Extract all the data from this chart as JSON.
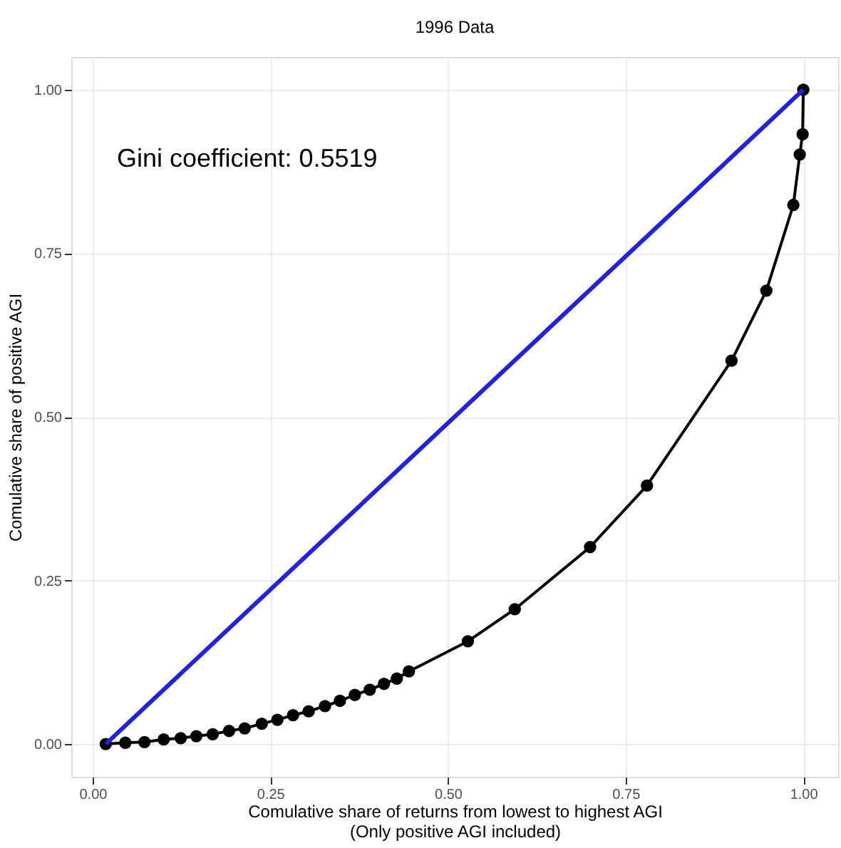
{
  "chart_data": {
    "type": "line",
    "title": "1996 Data",
    "xlabel": "Comulative share of returns from lowest to highest AGI\n(Only positive AGI included)",
    "ylabel": "Comulative share of positive AGI",
    "annotations": [
      "Gini coefficient:  0.5519"
    ],
    "xlim": [
      -0.03,
      1.049
    ],
    "xticks": [
      {
        "value": 0,
        "label": "0.00"
      },
      {
        "value": 0.25,
        "label": "0.25"
      },
      {
        "value": 0.5,
        "label": "0.50"
      },
      {
        "value": 0.75,
        "label": "0.75"
      },
      {
        "value": 1,
        "label": "1.00"
      }
    ],
    "ylim": [
      -0.05,
      1.05
    ],
    "yticks": [
      {
        "value": 0,
        "label": "0.00"
      },
      {
        "value": 0.25,
        "label": "0.25"
      },
      {
        "value": 0.5,
        "label": "0.50"
      },
      {
        "value": 0.75,
        "label": "0.75"
      },
      {
        "value": 1,
        "label": "1.00"
      }
    ],
    "grid": true,
    "series": [
      {
        "color": "#000000",
        "marker": "circle",
        "x": [
          0.0185,
          0.046,
          0.073,
          0.1,
          0.124,
          0.146,
          0.169,
          0.192,
          0.214,
          0.238,
          0.26,
          0.282,
          0.304,
          0.327,
          0.348,
          0.369,
          0.39,
          0.41,
          0.428,
          0.445,
          0.528,
          0.594,
          0.7,
          0.78,
          0.899,
          0.948,
          0.986,
          0.995,
          0.999,
          1.0
        ],
        "values": [
          0,
          0.002,
          0.003,
          0.007,
          0.009,
          0.012,
          0.015,
          0.02,
          0.024,
          0.031,
          0.037,
          0.044,
          0.05,
          0.058,
          0.066,
          0.075,
          0.083,
          0.092,
          0.1,
          0.111,
          0.157,
          0.206,
          0.301,
          0.395,
          0.586,
          0.693,
          0.824,
          0.901,
          0.932,
          1.0
        ]
      },
      {
        "color": "#2222dd",
        "marker": "none",
        "x": [
          0.0185,
          1.0
        ],
        "values": [
          0,
          1.0
        ]
      }
    ]
  }
}
